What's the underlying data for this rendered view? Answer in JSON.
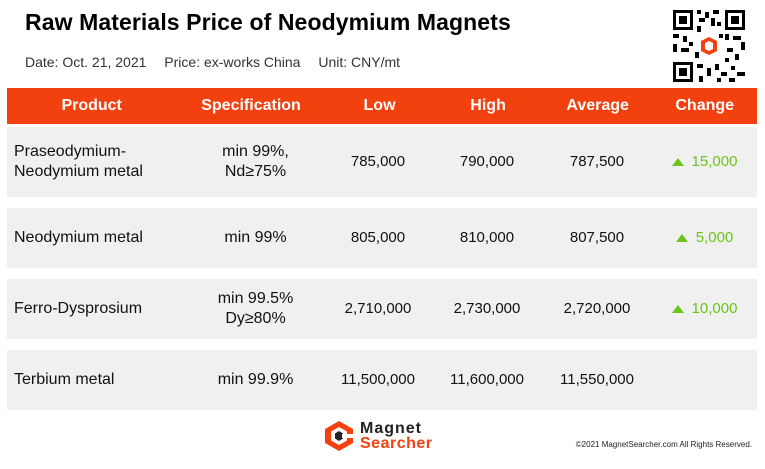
{
  "title": "Raw Materials Price of Neodymium Magnets",
  "meta": {
    "date": "Date: Oct. 21, 2021",
    "price": "Price: ex-works China",
    "unit": "Unit: CNY/mt"
  },
  "qr_icon": "qr-code-icon",
  "headers": [
    "Product",
    "Specification",
    "Low",
    "High",
    "Average",
    "Change"
  ],
  "rows": [
    {
      "product_line1": "Praseodymium-",
      "product_line2": "Neodymium metal",
      "spec_line1": "min 99%,",
      "spec_line2": "Nd≥75%",
      "low": "785,000",
      "high": "790,000",
      "average": "787,500",
      "change": "15,000"
    },
    {
      "product_line1": "Neodymium metal",
      "product_line2": "",
      "spec_line1": "min 99%",
      "spec_line2": "",
      "low": "805,000",
      "high": "810,000",
      "average": "807,500",
      "change": "5,000"
    },
    {
      "product_line1": "Ferro-Dysprosium",
      "product_line2": "",
      "spec_line1": "min 99.5%",
      "spec_line2": "Dy≥80%",
      "low": "2,710,000",
      "high": "2,730,000",
      "average": "2,720,000",
      "change": "10,000"
    },
    {
      "product_line1": "Terbium metal",
      "product_line2": "",
      "spec_line1": "min 99.9%",
      "spec_line2": "",
      "low": "11,500,000",
      "high": "11,600,000",
      "average": "11,550,000",
      "change": ""
    }
  ],
  "colors": {
    "header_bg": "#f2400e",
    "row_bg": "#f0f0f0",
    "up": "#6cc41a"
  },
  "footer": {
    "brand_line1": "Magnet",
    "brand_line2": "Searcher",
    "copyright": "©2021 MagnetSearcher.com All Rights Reserved."
  }
}
